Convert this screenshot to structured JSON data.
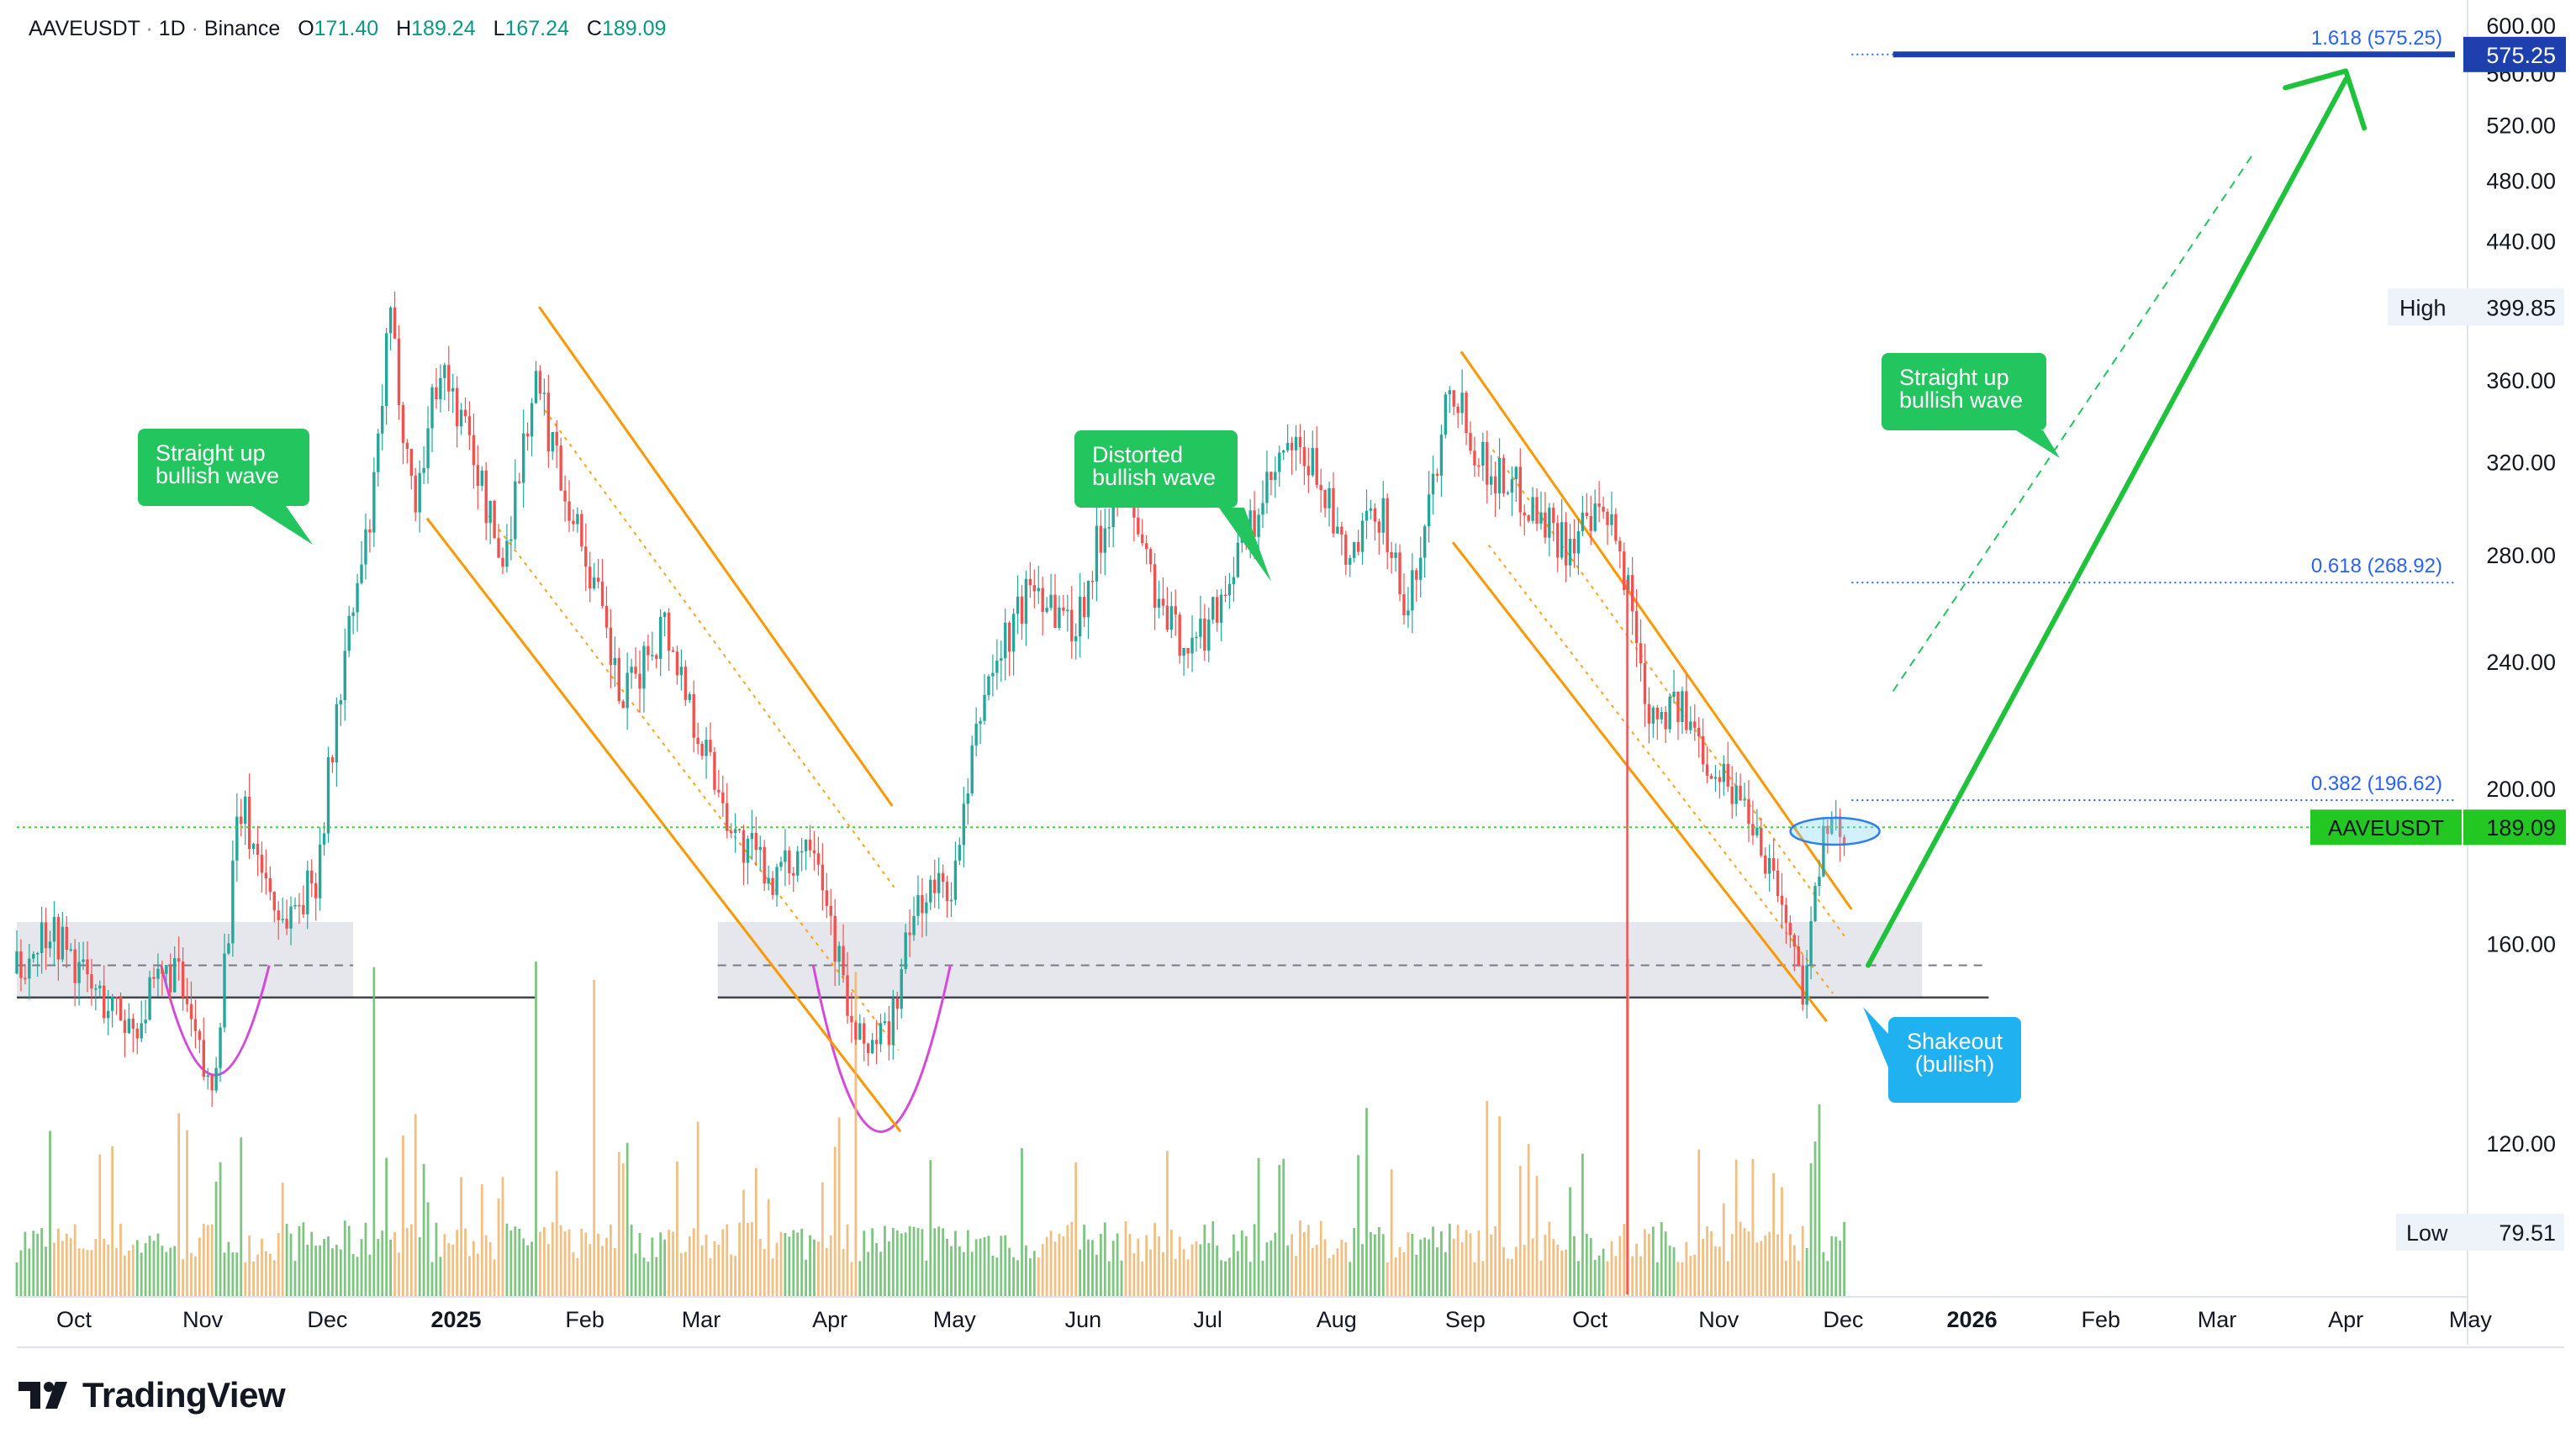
{
  "header": {
    "symbol": "AAVEUSDT",
    "interval": "1D",
    "exchange": "Binance",
    "open_label": "O",
    "open": "171.40",
    "high_label": "H",
    "high": "189.24",
    "low_label": "L",
    "low": "167.24",
    "close_label": "C",
    "close": "189.09"
  },
  "brand": {
    "name": "TradingView"
  },
  "colors": {
    "up": "#26a69a",
    "down": "#ef5350",
    "bull_vol": "#66bb6a",
    "bear_vol": "#f0b46c",
    "channel": "#ff9800",
    "note_green": "#22c55e",
    "note_blue": "#1fb1f0",
    "fib_line": "#1e40af",
    "fib_text": "#2962ff",
    "price_green": "#22c722"
  },
  "chart_data": {
    "type": "candlestick",
    "symbol": "AAVEUSDT",
    "interval": "1D",
    "y_axis": {
      "ticks": [
        "600.00",
        "560.00",
        "520.00",
        "480.00",
        "440.00",
        "400.00",
        "360.00",
        "320.00",
        "280.00",
        "240.00",
        "200.00",
        "160.00",
        "120.00"
      ],
      "scale": "log"
    },
    "x_axis": {
      "ticks": [
        {
          "label": "Oct",
          "date": "2024-10-01",
          "bold": false
        },
        {
          "label": "Nov",
          "date": "2024-11-01",
          "bold": false
        },
        {
          "label": "Dec",
          "date": "2024-12-01",
          "bold": false
        },
        {
          "label": "2025",
          "date": "2025-01-01",
          "bold": true
        },
        {
          "label": "Feb",
          "date": "2025-02-01",
          "bold": false
        },
        {
          "label": "Mar",
          "date": "2025-03-01",
          "bold": false
        },
        {
          "label": "Apr",
          "date": "2025-04-01",
          "bold": false
        },
        {
          "label": "May",
          "date": "2025-05-01",
          "bold": false
        },
        {
          "label": "Jun",
          "date": "2025-06-01",
          "bold": false
        },
        {
          "label": "Jul",
          "date": "2025-07-01",
          "bold": false
        },
        {
          "label": "Aug",
          "date": "2025-08-01",
          "bold": false
        },
        {
          "label": "Sep",
          "date": "2025-09-01",
          "bold": false
        },
        {
          "label": "Oct",
          "date": "2025-10-01",
          "bold": false
        },
        {
          "label": "Nov",
          "date": "2025-11-01",
          "bold": false
        },
        {
          "label": "Dec",
          "date": "2025-12-01",
          "bold": false
        },
        {
          "label": "2026",
          "date": "2026-01-01",
          "bold": true
        },
        {
          "label": "Feb",
          "date": "2026-02-01",
          "bold": false
        },
        {
          "label": "Mar",
          "date": "2026-03-01",
          "bold": false
        },
        {
          "label": "Apr",
          "date": "2026-04-01",
          "bold": false
        },
        {
          "label": "May",
          "date": "2026-05-01",
          "bold": false
        }
      ]
    },
    "price_path": [
      [
        "2024-09-15",
        150
      ],
      [
        "2024-09-25",
        165
      ],
      [
        "2024-10-05",
        150
      ],
      [
        "2024-10-15",
        142
      ],
      [
        "2024-10-25",
        155
      ],
      [
        "2024-11-03",
        128
      ],
      [
        "2024-11-10",
        195
      ],
      [
        "2024-11-20",
        165
      ],
      [
        "2024-11-28",
        175
      ],
      [
        "2024-12-05",
        240
      ],
      [
        "2024-12-12",
        300
      ],
      [
        "2024-12-16",
        395
      ],
      [
        "2024-12-22",
        300
      ],
      [
        "2024-12-28",
        370
      ],
      [
        "2025-01-05",
        325
      ],
      [
        "2025-01-12",
        275
      ],
      [
        "2025-01-20",
        360
      ],
      [
        "2025-01-27",
        310
      ],
      [
        "2025-02-03",
        270
      ],
      [
        "2025-02-10",
        225
      ],
      [
        "2025-02-20",
        255
      ],
      [
        "2025-03-01",
        215
      ],
      [
        "2025-03-10",
        185
      ],
      [
        "2025-03-20",
        175
      ],
      [
        "2025-03-28",
        190
      ],
      [
        "2025-04-07",
        138
      ],
      [
        "2025-04-15",
        140
      ],
      [
        "2025-04-22",
        170
      ],
      [
        "2025-05-01",
        175
      ],
      [
        "2025-05-08",
        230
      ],
      [
        "2025-05-20",
        270
      ],
      [
        "2025-05-30",
        252
      ],
      [
        "2025-06-10",
        320
      ],
      [
        "2025-06-20",
        255
      ],
      [
        "2025-06-28",
        245
      ],
      [
        "2025-07-10",
        285
      ],
      [
        "2025-07-20",
        325
      ],
      [
        "2025-07-28",
        315
      ],
      [
        "2025-08-03",
        275
      ],
      [
        "2025-08-12",
        300
      ],
      [
        "2025-08-18",
        255
      ],
      [
        "2025-08-25",
        320
      ],
      [
        "2025-08-28",
        365
      ],
      [
        "2025-09-05",
        320
      ],
      [
        "2025-09-15",
        305
      ],
      [
        "2025-09-25",
        285
      ],
      [
        "2025-10-05",
        295
      ],
      [
        "2025-10-10",
        270
      ],
      [
        "2025-10-15",
        225
      ],
      [
        "2025-10-22",
        225
      ],
      [
        "2025-11-01",
        205
      ],
      [
        "2025-11-08",
        195
      ],
      [
        "2025-11-15",
        175
      ],
      [
        "2025-11-21",
        150
      ],
      [
        "2025-11-26",
        185
      ],
      [
        "2025-12-02",
        189.09
      ]
    ],
    "volume_spikes": [
      "2024-12-12",
      "2025-01-20",
      "2025-02-03",
      "2025-04-07",
      "2025-10-10"
    ],
    "channels": [
      {
        "upper": [
          [
            "2025-01-21",
            400
          ],
          [
            "2025-04-16",
            195
          ]
        ],
        "lower": [
          [
            "2024-12-25",
            295
          ],
          [
            "2025-04-18",
            122
          ]
        ]
      },
      {
        "upper": [
          [
            "2025-08-31",
            375
          ],
          [
            "2025-12-03",
            168
          ]
        ],
        "lower": [
          [
            "2025-08-29",
            285
          ],
          [
            "2025-11-27",
            143
          ]
        ]
      }
    ],
    "support_zone": {
      "from": 148,
      "to": 165,
      "mid": 155
    },
    "support_lines": [
      {
        "from_date": "2024-09-15",
        "to_date": "2025-01-20",
        "price": 148
      },
      {
        "from_date": "2025-03-05",
        "to_date": "2026-01-05",
        "price": 148
      }
    ],
    "projection": {
      "from": [
        "2025-12-07",
        155
      ],
      "to": [
        "2026-04-01",
        555
      ]
    },
    "projection_dashed": {
      "from": [
        "2025-12-13",
        230
      ],
      "to": [
        "2026-03-10",
        500
      ]
    },
    "fib_levels": [
      {
        "label": "0.382 (196.62)",
        "value": 196.62
      },
      {
        "label": "0.618 (268.92)",
        "value": 268.92
      },
      {
        "label": "1.618 (575.25)",
        "value": 575.25
      }
    ],
    "last_price": 189.09,
    "high": 399.85,
    "low": 79.51,
    "annotations": [
      {
        "kind": "green",
        "lines": [
          "Straight up",
          "bullish wave"
        ]
      },
      {
        "kind": "green",
        "lines": [
          "Distorted",
          "bullish wave"
        ]
      },
      {
        "kind": "green",
        "lines": [
          "Straight up",
          "bullish wave"
        ]
      },
      {
        "kind": "blue",
        "lines": [
          "Shakeout",
          "(bullish)"
        ]
      }
    ],
    "labels": {
      "high_label": "High",
      "high_value": "399.85",
      "low_label": "Low",
      "low_value": "79.51",
      "symbol_label": "AAVEUSDT",
      "last_value": "189.09",
      "fib_top_value": "575.25"
    }
  }
}
